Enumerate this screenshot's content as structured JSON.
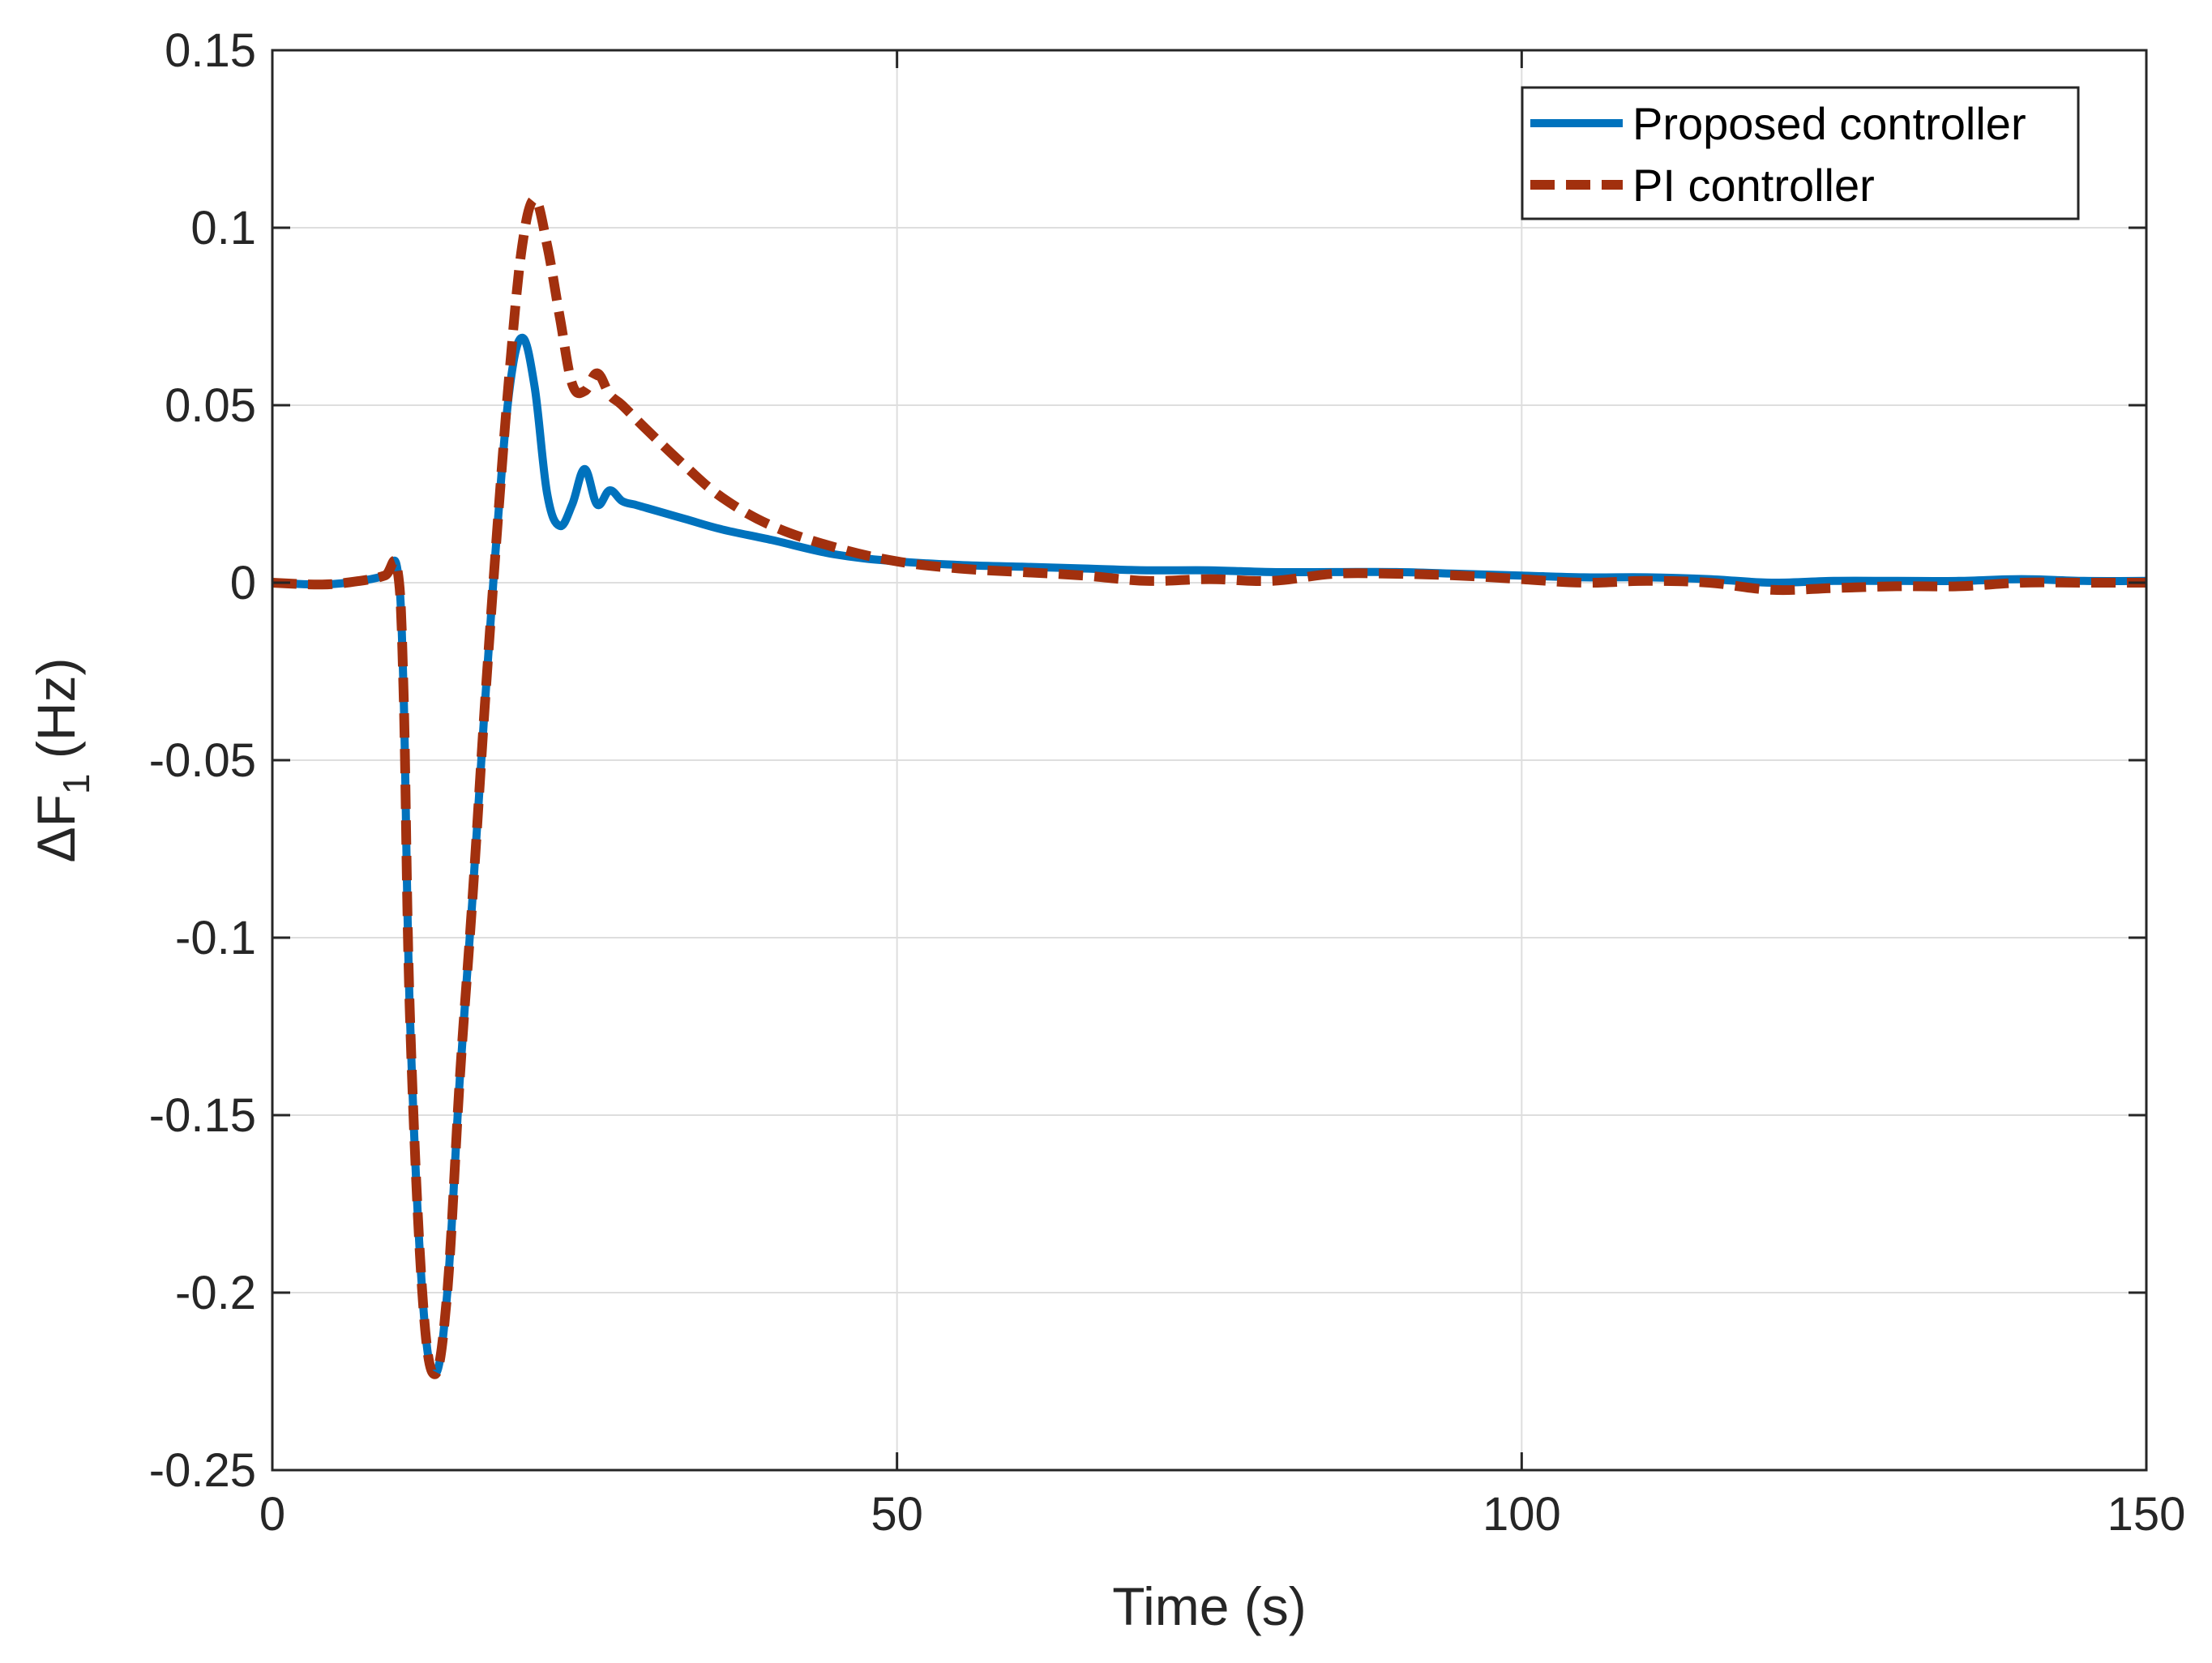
{
  "chart_data": {
    "type": "line",
    "title": "",
    "xlabel": "Time (s)",
    "ylabel": {
      "prefix": "ΔF",
      "subscript": "1",
      "suffix": " (Hz)"
    },
    "xlim": [
      0,
      150
    ],
    "ylim": [
      -0.25,
      0.15
    ],
    "xticks": [
      0,
      50,
      100,
      150
    ],
    "xtick_labels": [
      "0",
      "50",
      "100",
      "150"
    ],
    "yticks": [
      0.15,
      0.1,
      0.05,
      0,
      -0.05,
      -0.1,
      -0.15,
      -0.2,
      -0.25
    ],
    "ytick_labels": [
      "0.15",
      "0.1",
      "0.05",
      "0",
      "-0.05",
      "-0.1",
      "-0.15",
      "-0.2",
      "-0.25"
    ],
    "grid": true,
    "legend_position": "top-right",
    "series": [
      {
        "name": "Proposed controller",
        "color": "#0072BD",
        "style": "solid",
        "x": [
          0,
          4,
          7,
          9,
          10,
          10.5,
          11,
          12,
          13,
          14,
          15,
          16,
          17,
          18,
          19,
          20,
          21,
          22,
          23,
          24,
          25,
          26,
          27,
          28,
          29,
          30,
          33,
          36,
          40,
          45,
          50,
          55,
          60,
          65,
          70,
          75,
          80,
          85,
          90,
          95,
          100,
          105,
          110,
          115,
          120,
          125,
          130,
          135,
          140,
          145,
          150
        ],
        "y": [
          0,
          -0.0005,
          0.0005,
          0.002,
          0.004,
          -0.03,
          -0.12,
          -0.2,
          -0.223,
          -0.2,
          -0.14,
          -0.09,
          -0.035,
          0.015,
          0.055,
          0.069,
          0.055,
          0.025,
          0.016,
          0.022,
          0.032,
          0.022,
          0.026,
          0.023,
          0.022,
          0.021,
          0.018,
          0.015,
          0.012,
          0.008,
          0.006,
          0.005,
          0.0045,
          0.004,
          0.0035,
          0.0035,
          0.003,
          0.003,
          0.003,
          0.0025,
          0.002,
          0.0015,
          0.0015,
          0.001,
          0.0,
          0.0005,
          0.0005,
          0.0005,
          0.001,
          0.0005,
          0.0005
        ]
      },
      {
        "name": "PI controller",
        "color": "#A2300E",
        "style": "dashed",
        "x": [
          0,
          4,
          7,
          9,
          10,
          10.5,
          11,
          12,
          13,
          14,
          15,
          16,
          17,
          18,
          19,
          20,
          21,
          22,
          23,
          24,
          25,
          26,
          27,
          28,
          30,
          33,
          36,
          40,
          45,
          50,
          55,
          60,
          65,
          70,
          75,
          80,
          85,
          90,
          95,
          100,
          105,
          110,
          115,
          120,
          125,
          130,
          135,
          140,
          145,
          150
        ],
        "y": [
          0,
          -0.0005,
          0.0005,
          0.002,
          0.004,
          -0.03,
          -0.12,
          -0.2,
          -0.223,
          -0.2,
          -0.14,
          -0.09,
          -0.035,
          0.015,
          0.06,
          0.095,
          0.108,
          0.095,
          0.075,
          0.056,
          0.054,
          0.059,
          0.053,
          0.05,
          0.043,
          0.033,
          0.024,
          0.016,
          0.01,
          0.006,
          0.004,
          0.003,
          0.002,
          0.0005,
          0.001,
          0.0005,
          0.0025,
          0.0025,
          0.002,
          0.001,
          0.0,
          0.0005,
          0.0,
          -0.002,
          -0.0015,
          -0.001,
          -0.001,
          0.0,
          0.0,
          0.0
        ]
      }
    ]
  }
}
